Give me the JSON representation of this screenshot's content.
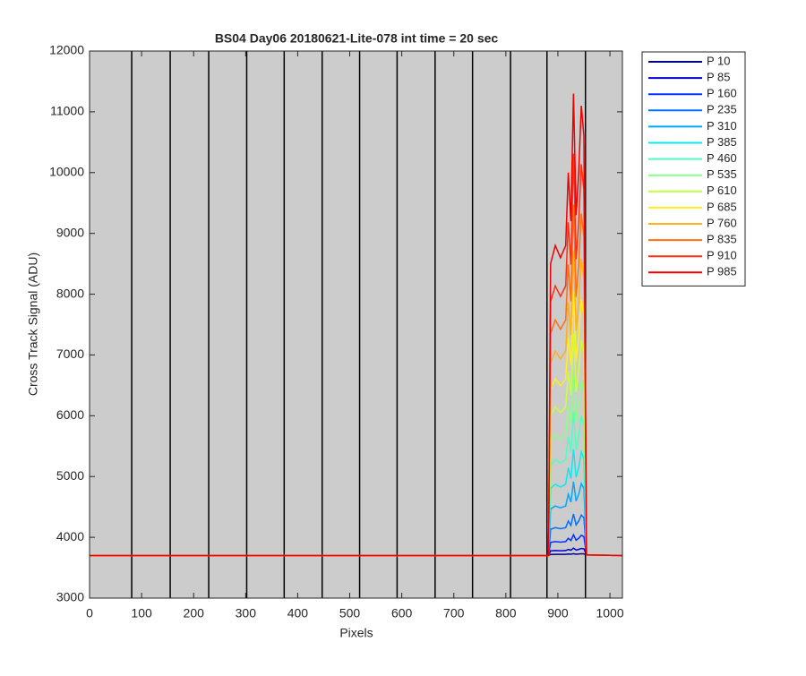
{
  "chart_data": {
    "type": "line",
    "title": "BS04 Day06 20180621-Lite-078 int time = 20 sec",
    "x_label": "Pixels",
    "y_label": "Cross Track Signal (ADU)",
    "xlim": [
      0,
      1024
    ],
    "ylim": [
      3000,
      12000
    ],
    "xticks": [
      0,
      100,
      200,
      300,
      400,
      500,
      600,
      700,
      800,
      900,
      1000
    ],
    "yticks": [
      3000,
      4000,
      5000,
      6000,
      7000,
      8000,
      9000,
      10000,
      11000,
      12000
    ],
    "background": "#cccccc",
    "legend": "outside-right",
    "vertical_lines": [
      81,
      155,
      229,
      302,
      374,
      447,
      519,
      591,
      664,
      736,
      809,
      879,
      953
    ],
    "x": [
      0,
      200,
      400,
      600,
      800,
      882,
      886,
      895,
      905,
      915,
      920,
      925,
      930,
      935,
      940,
      945,
      950,
      955,
      1024
    ],
    "series": [
      {
        "name": "P 10",
        "color": "#00008f",
        "values": [
          3700,
          3700,
          3700,
          3700,
          3700,
          3700,
          3719,
          3720,
          3720,
          3720,
          3725,
          3722,
          3730,
          3722,
          3725,
          3730,
          3728,
          3710,
          3700
        ]
      },
      {
        "name": "P 85",
        "color": "#0000d0",
        "values": [
          3700,
          3700,
          3700,
          3700,
          3700,
          3700,
          3777,
          3782,
          3778,
          3782,
          3801,
          3788,
          3822,
          3790,
          3801,
          3818,
          3810,
          3710,
          3700
        ]
      },
      {
        "name": "P 160",
        "color": "#0030ff",
        "values": [
          3700,
          3700,
          3700,
          3700,
          3700,
          3700,
          3916,
          3930,
          3921,
          3930,
          3984,
          3948,
          4042,
          3952,
          3984,
          4033,
          4011,
          3710,
          3700
        ]
      },
      {
        "name": "P 235",
        "color": "#0070ff",
        "values": [
          3700,
          3700,
          3700,
          3700,
          3700,
          3700,
          4132,
          4159,
          4141,
          4159,
          4267,
          4195,
          4384,
          4204,
          4267,
          4366,
          4321,
          3710,
          3700
        ]
      },
      {
        "name": "P 310",
        "color": "#00a8ff",
        "values": [
          3700,
          3700,
          3700,
          3700,
          3700,
          3700,
          4468,
          4516,
          4484,
          4516,
          4708,
          4580,
          4916,
          4596,
          4708,
          4884,
          4804,
          3710,
          3700
        ]
      },
      {
        "name": "P 385",
        "color": "#10e8f0",
        "values": [
          3700,
          3700,
          3700,
          3700,
          3700,
          3700,
          4804,
          4873,
          4827,
          4873,
          5149,
          4965,
          5448,
          4988,
          5149,
          5402,
          5287,
          3710,
          3700
        ]
      },
      {
        "name": "P 460",
        "color": "#50ffc0",
        "values": [
          3700,
          3700,
          3700,
          3700,
          3700,
          3700,
          5188,
          5281,
          5219,
          5281,
          5653,
          5405,
          6056,
          5436,
          5653,
          5994,
          5839,
          3710,
          3700
        ]
      },
      {
        "name": "P 535",
        "color": "#88ff88",
        "values": [
          3700,
          3700,
          3700,
          3700,
          3700,
          3700,
          5572,
          5689,
          5611,
          5689,
          6157,
          5845,
          6664,
          5884,
          6157,
          6586,
          6391,
          3710,
          3700
        ]
      },
      {
        "name": "P 610",
        "color": "#c8ff40",
        "values": [
          3700,
          3700,
          3700,
          3700,
          3700,
          3700,
          6004,
          6148,
          6052,
          6148,
          6724,
          6340,
          7348,
          6388,
          6724,
          7252,
          7012,
          3710,
          3700
        ]
      },
      {
        "name": "P 685",
        "color": "#ffee20",
        "values": [
          3700,
          3700,
          3700,
          3700,
          3700,
          3700,
          6436,
          6607,
          6493,
          6607,
          7291,
          6835,
          8032,
          6892,
          7291,
          7918,
          7633,
          3710,
          3700
        ]
      },
      {
        "name": "P 760",
        "color": "#ffb020",
        "values": [
          3700,
          3700,
          3700,
          3700,
          3700,
          3700,
          6868,
          7066,
          6934,
          7066,
          7858,
          7330,
          8716,
          7396,
          7858,
          8584,
          8254,
          3710,
          3700
        ]
      },
      {
        "name": "P 835",
        "color": "#ff7010",
        "values": [
          3700,
          3700,
          3700,
          3700,
          3700,
          3700,
          7348,
          7576,
          7424,
          7576,
          8488,
          7880,
          9476,
          7956,
          8488,
          9324,
          8944,
          3710,
          3700
        ]
      },
      {
        "name": "P 910",
        "color": "#ff3010",
        "values": [
          3700,
          3700,
          3700,
          3700,
          3700,
          3700,
          7876,
          8137,
          7963,
          8137,
          9181,
          8485,
          10312,
          8572,
          9181,
          10138,
          9703,
          3710,
          3700
        ]
      },
      {
        "name": "P 985",
        "color": "#ee0000",
        "values": [
          3700,
          3700,
          3700,
          3700,
          3700,
          3700,
          8500,
          8800,
          8600,
          8800,
          10000,
          9200,
          11300,
          9300,
          10000,
          11100,
          10600,
          3710,
          3700
        ]
      }
    ]
  }
}
